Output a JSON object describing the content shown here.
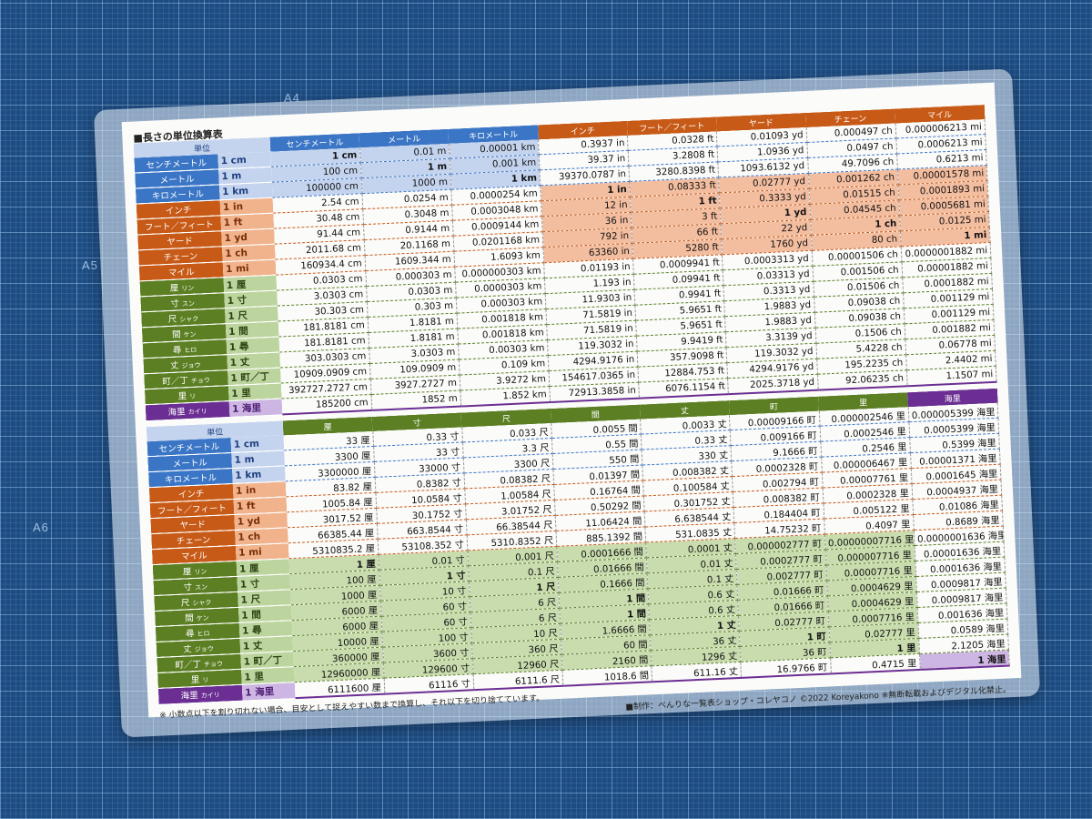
{
  "mat_labels": [
    "A4",
    "A5",
    "A6"
  ],
  "title": "■長さの単位換算表",
  "corner_label": "単位",
  "colors": {
    "metric": "#3b76c6",
    "imperial": "#c75a16",
    "japanese": "#5b7f22",
    "nautical": "#6b2e92",
    "mat": "#1d4c82"
  },
  "rows": [
    {
      "name": "センチメートル",
      "reading": "",
      "unit": "1 cm",
      "group": "metric"
    },
    {
      "name": "メートル",
      "reading": "",
      "unit": "1 m",
      "group": "metric"
    },
    {
      "name": "キロメートル",
      "reading": "",
      "unit": "1 km",
      "group": "metric"
    },
    {
      "name": "インチ",
      "reading": "",
      "unit": "1 in",
      "group": "imperial"
    },
    {
      "name": "フート／フィート",
      "reading": "",
      "unit": "1 ft",
      "group": "imperial"
    },
    {
      "name": "ヤード",
      "reading": "",
      "unit": "1 yd",
      "group": "imperial"
    },
    {
      "name": "チェーン",
      "reading": "",
      "unit": "1 ch",
      "group": "imperial"
    },
    {
      "name": "マイル",
      "reading": "",
      "unit": "1 mi",
      "group": "imperial"
    },
    {
      "name": "厘",
      "reading": "リン",
      "unit": "1 厘",
      "group": "japanese"
    },
    {
      "name": "寸",
      "reading": "スン",
      "unit": "1 寸",
      "group": "japanese"
    },
    {
      "name": "尺",
      "reading": "シャク",
      "unit": "1 尺",
      "group": "japanese"
    },
    {
      "name": "間",
      "reading": "ケン",
      "unit": "1 間",
      "group": "japanese"
    },
    {
      "name": "尋",
      "reading": "ヒロ",
      "unit": "1 尋",
      "group": "japanese"
    },
    {
      "name": "丈",
      "reading": "ジョウ",
      "unit": "1 丈",
      "group": "japanese"
    },
    {
      "name": "町／丁",
      "reading": "チョウ",
      "unit": "1 町／丁",
      "group": "japanese"
    },
    {
      "name": "里",
      "reading": "リ",
      "unit": "1 里",
      "group": "japanese"
    },
    {
      "name": "海里",
      "reading": "カイリ",
      "unit": "1 海里",
      "group": "nautical"
    }
  ],
  "top_table": {
    "columns": [
      {
        "label": "センチメートル",
        "group": "metric"
      },
      {
        "label": "メートル",
        "group": "metric"
      },
      {
        "label": "キロメートル",
        "group": "metric"
      },
      {
        "label": "インチ",
        "group": "imperial"
      },
      {
        "label": "フート／フィート",
        "group": "imperial"
      },
      {
        "label": "ヤード",
        "group": "imperial"
      },
      {
        "label": "チェーン",
        "group": "imperial"
      },
      {
        "label": "マイル",
        "group": "imperial"
      }
    ],
    "values": [
      [
        "1 cm",
        "0.01 m",
        "0.00001 km",
        "0.3937 in",
        "0.0328 ft",
        "0.01093 yd",
        "0.000497 ch",
        "0.000006213 mi"
      ],
      [
        "100 cm",
        "1 m",
        "0.001 km",
        "39.37 in",
        "3.2808 ft",
        "1.0936 yd",
        "0.0497 ch",
        "0.0006213 mi"
      ],
      [
        "100000 cm",
        "1000 m",
        "1 km",
        "39370.0787 in",
        "3280.8398 ft",
        "1093.6132 yd",
        "49.7096 ch",
        "0.6213 mi"
      ],
      [
        "2.54 cm",
        "0.0254 m",
        "0.0000254 km",
        "1 in",
        "0.08333 ft",
        "0.02777 yd",
        "0.001262 ch",
        "0.00001578 mi"
      ],
      [
        "30.48 cm",
        "0.3048 m",
        "0.0003048 km",
        "12 in",
        "1 ft",
        "0.3333 yd",
        "0.01515 ch",
        "0.0001893 mi"
      ],
      [
        "91.44 cm",
        "0.9144 m",
        "0.0009144 km",
        "36 in",
        "3 ft",
        "1 yd",
        "0.04545 ch",
        "0.0005681 mi"
      ],
      [
        "2011.68 cm",
        "20.1168 m",
        "0.0201168 km",
        "792 in",
        "66 ft",
        "22 yd",
        "1 ch",
        "0.0125 mi"
      ],
      [
        "160934.4 cm",
        "1609.344 m",
        "1.6093 km",
        "63360 in",
        "5280 ft",
        "1760 yd",
        "80 ch",
        "1 mi"
      ],
      [
        "0.0303 cm",
        "0.000303 m",
        "0.000000303 km",
        "0.01193 in",
        "0.0009941 ft",
        "0.0003313 yd",
        "0.00001506 ch",
        "0.0000001882 mi"
      ],
      [
        "3.0303 cm",
        "0.0303 m",
        "0.0000303 km",
        "1.193 in",
        "0.09941 ft",
        "0.03313 yd",
        "0.001506 ch",
        "0.00001882 mi"
      ],
      [
        "30.303 cm",
        "0.303 m",
        "0.000303 km",
        "11.9303 in",
        "0.9941 ft",
        "0.3313 yd",
        "0.01506 ch",
        "0.0001882 mi"
      ],
      [
        "181.8181 cm",
        "1.8181 m",
        "0.001818 km",
        "71.5819 in",
        "5.9651 ft",
        "1.9883 yd",
        "0.09038 ch",
        "0.001129 mi"
      ],
      [
        "181.8181 cm",
        "1.8181 m",
        "0.001818 km",
        "71.5819 in",
        "5.9651 ft",
        "1.9883 yd",
        "0.09038 ch",
        "0.001129 mi"
      ],
      [
        "303.0303 cm",
        "3.0303 m",
        "0.00303 km",
        "119.3032 in",
        "9.9419 ft",
        "3.3139 yd",
        "0.1506 ch",
        "0.001882 mi"
      ],
      [
        "10909.0909 cm",
        "109.0909 m",
        "0.109 km",
        "4294.9176 in",
        "357.9098 ft",
        "119.3032 yd",
        "5.4228 ch",
        "0.06778 mi"
      ],
      [
        "392727.2727 cm",
        "3927.2727 m",
        "3.9272 km",
        "154617.0365 in",
        "12884.753 ft",
        "4294.9176 yd",
        "195.2235 ch",
        "2.4402 mi"
      ],
      [
        "185200 cm",
        "1852 m",
        "1.852 km",
        "72913.3858 in",
        "6076.1154 ft",
        "2025.3718 yd",
        "92.06235 ch",
        "1.1507 mi"
      ]
    ]
  },
  "bottom_table": {
    "columns": [
      {
        "label": "厘",
        "group": "japanese"
      },
      {
        "label": "寸",
        "group": "japanese"
      },
      {
        "label": "尺",
        "group": "japanese"
      },
      {
        "label": "間",
        "group": "japanese"
      },
      {
        "label": "丈",
        "group": "japanese"
      },
      {
        "label": "町",
        "group": "japanese"
      },
      {
        "label": "里",
        "group": "japanese"
      },
      {
        "label": "海里",
        "group": "nautical"
      }
    ],
    "values": [
      [
        "33 厘",
        "0.33 寸",
        "0.033 尺",
        "0.0055 間",
        "0.0033 丈",
        "0.00009166 町",
        "0.000002546 里",
        "0.000005399 海里"
      ],
      [
        "3300 厘",
        "33 寸",
        "3.3 尺",
        "0.55 間",
        "0.33 丈",
        "0.009166 町",
        "0.0002546 里",
        "0.0005399 海里"
      ],
      [
        "3300000 厘",
        "33000 寸",
        "3300 尺",
        "550 間",
        "330 丈",
        "9.1666 町",
        "0.2546 里",
        "0.5399 海里"
      ],
      [
        "83.82 厘",
        "0.8382 寸",
        "0.08382 尺",
        "0.01397 間",
        "0.008382 丈",
        "0.0002328 町",
        "0.000006467 里",
        "0.00001371 海里"
      ],
      [
        "1005.84 厘",
        "10.0584 寸",
        "1.00584 尺",
        "0.16764 間",
        "0.100584 丈",
        "0.002794 町",
        "0.00007761 里",
        "0.0001645 海里"
      ],
      [
        "3017.52 厘",
        "30.1752 寸",
        "3.01752 尺",
        "0.50292 間",
        "0.301752 丈",
        "0.008382 町",
        "0.0002328 里",
        "0.0004937 海里"
      ],
      [
        "66385.44 厘",
        "663.8544 寸",
        "66.38544 尺",
        "11.06424 間",
        "6.638544 丈",
        "0.184404 町",
        "0.005122 里",
        "0.01086 海里"
      ],
      [
        "5310835.2 厘",
        "53108.352 寸",
        "5310.8352 尺",
        "885.1392 間",
        "531.0835 丈",
        "14.75232 町",
        "0.4097 里",
        "0.8689 海里"
      ],
      [
        "1 厘",
        "0.01 寸",
        "0.001 尺",
        "0.0001666 間",
        "0.0001 丈",
        "0.000002777 町",
        "0.00000007716 里",
        "0.0000001636 海里"
      ],
      [
        "100 厘",
        "1 寸",
        "0.1 尺",
        "0.01666 間",
        "0.01 丈",
        "0.0002777 町",
        "0.000007716 里",
        "0.00001636 海里"
      ],
      [
        "1000 厘",
        "10 寸",
        "1 尺",
        "0.1666 間",
        "0.1 丈",
        "0.002777 町",
        "0.00007716 里",
        "0.0001636 海里"
      ],
      [
        "6000 厘",
        "60 寸",
        "6 尺",
        "1 間",
        "0.6 丈",
        "0.01666 町",
        "0.0004629 里",
        "0.0009817 海里"
      ],
      [
        "6000 厘",
        "60 寸",
        "6 尺",
        "1 間",
        "0.6 丈",
        "0.01666 町",
        "0.0004629 里",
        "0.0009817 海里"
      ],
      [
        "10000 厘",
        "100 寸",
        "10 尺",
        "1.6666 間",
        "1 丈",
        "0.02777 町",
        "0.0007716 里",
        "0.001636 海里"
      ],
      [
        "360000 厘",
        "3600 寸",
        "360 尺",
        "60 間",
        "36 丈",
        "1 町",
        "0.02777 里",
        "0.0589 海里"
      ],
      [
        "12960000 厘",
        "129600 寸",
        "12960 尺",
        "2160 間",
        "1296 丈",
        "36 町",
        "1 里",
        "2.1205 海里"
      ],
      [
        "6111600 厘",
        "61116 寸",
        "6111.6 尺",
        "1018.6 間",
        "611.16 丈",
        "16.9766 町",
        "0.4715 里",
        "1 海里"
      ]
    ]
  },
  "footer": {
    "credit": "■制作：べんりな一覧表ショップ・コレヤコノ ©2022 Koreyakono ※無断転載およびデジタル化禁止。",
    "note": "※ 小数点以下を割り切れない場合、目安として捉えやすい数まで換算し、それ以下を切り捨てています。"
  }
}
